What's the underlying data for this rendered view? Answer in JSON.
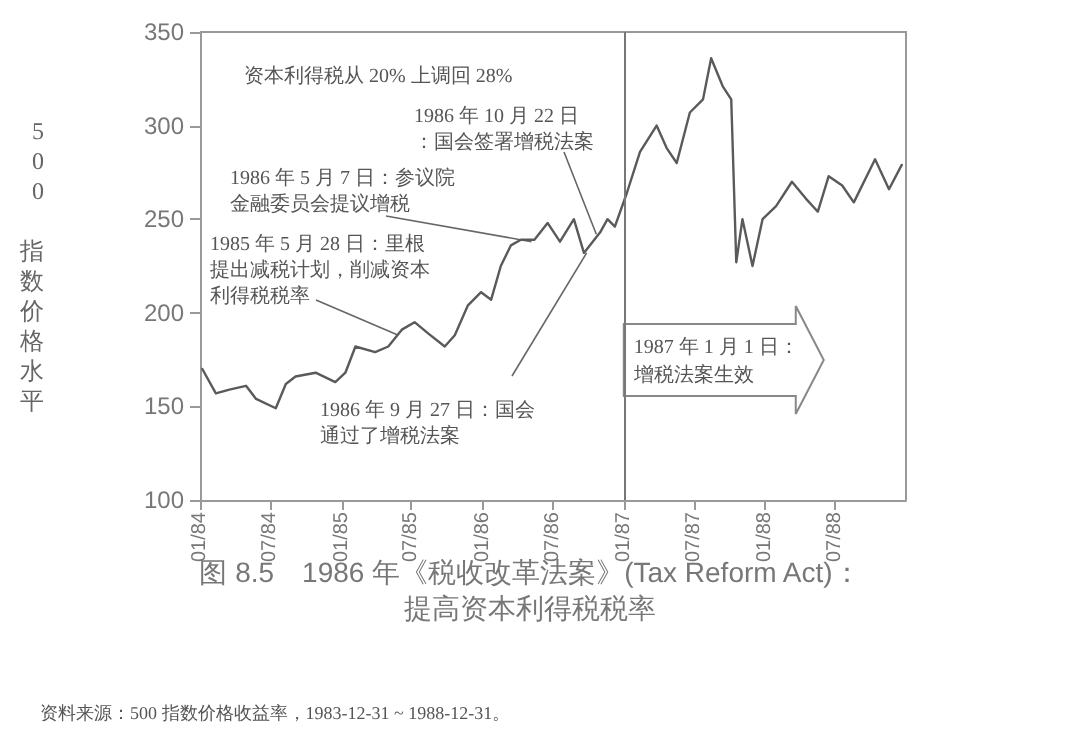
{
  "chart_data": {
    "type": "line",
    "title": "图 8.5　1986 年《税收改革法案》(Tax Reform Act)：提高资本利得税税率",
    "ylabel": "500 指数价格水平",
    "color": "#5a5a5a",
    "grid": false,
    "marker": "none",
    "line_style": "solid",
    "xlim": [
      "1984-01-01",
      "1988-12-31"
    ],
    "xticks": [
      {
        "value": "1984-01-01",
        "label": "01/84"
      },
      {
        "value": "1984-07-01",
        "label": "07/84"
      },
      {
        "value": "1985-01-01",
        "label": "01/85"
      },
      {
        "value": "1985-07-01",
        "label": "07/85"
      },
      {
        "value": "1986-01-01",
        "label": "01/86"
      },
      {
        "value": "1986-07-01",
        "label": "07/86"
      },
      {
        "value": "1987-01-01",
        "label": "01/87"
      },
      {
        "value": "1987-07-01",
        "label": "07/87"
      },
      {
        "value": "1988-01-01",
        "label": "01/88"
      },
      {
        "value": "1988-07-01",
        "label": "07/88"
      }
    ],
    "ylim": [
      100,
      350
    ],
    "yticks": [
      100,
      150,
      200,
      250,
      300,
      350
    ],
    "x": [
      "1984-01-07",
      "1984-02-11",
      "1984-03-17",
      "1984-04-29",
      "1984-05-25",
      "1984-07-15",
      "1984-08-10",
      "1984-09-04",
      "1984-10-26",
      "1984-12-16",
      "1985-01-11",
      "1985-02-06",
      "1985-03-29",
      "1985-05-02",
      "1985-06-06",
      "1985-07-09",
      "1985-08-13",
      "1985-09-25",
      "1985-10-21",
      "1985-11-24",
      "1985-12-28",
      "1986-01-23",
      "1986-02-17",
      "1986-03-15",
      "1986-04-10",
      "1986-05-15",
      "1986-06-18",
      "1986-07-20",
      "1986-08-25",
      "1986-09-20",
      "1986-11-01",
      "1986-11-20",
      "1986-12-09",
      "1987-01-09",
      "1987-02-12",
      "1987-03-27",
      "1987-04-22",
      "1987-05-18",
      "1987-06-21",
      "1987-07-25",
      "1987-08-15",
      "1987-09-14",
      "1987-10-06",
      "1987-10-19",
      "1987-11-04",
      "1987-11-30",
      "1987-12-26",
      "1988-01-30",
      "1988-03-11",
      "1988-04-16",
      "1988-05-17",
      "1988-06-14",
      "1988-07-19",
      "1988-08-18",
      "1988-10-12",
      "1988-11-17",
      "1988-12-20"
    ],
    "values": [
      170,
      157,
      159,
      161,
      154,
      149,
      162,
      166,
      168,
      163,
      168,
      182,
      179,
      182,
      191,
      195,
      189,
      182,
      188,
      204,
      211,
      207,
      225,
      236,
      239,
      239,
      248,
      238,
      250,
      232,
      243,
      250,
      246,
      264,
      286,
      300,
      288,
      280,
      307,
      314,
      336,
      321,
      314,
      227,
      250,
      225,
      250,
      257,
      270,
      261,
      254,
      273,
      268,
      259,
      282,
      266,
      279
    ],
    "ref_lines": [
      {
        "axis": "x",
        "value": "1987-01-01",
        "label": "1987 年 1 月 1 日：增税法案生效",
        "color": "#777777"
      }
    ],
    "annotations": [
      "资本利得税从 20% 上调回 28%",
      {
        "text": "1986 年 10 月 22 日：国会签署增税法案",
        "x": "1986-10-22",
        "y": 242
      },
      {
        "text": "1986 年 5 月 7 日：参议院金融委员会提议增税",
        "x": "1986-05-07",
        "y": 238
      },
      {
        "text": "1985 年 5 月 28 日：里根提出减税计划，削减资本利得税税率",
        "x": "1985-05-28",
        "y": 188
      },
      {
        "text": "1986 年 9 月 27 日：国会通过了增税法案",
        "x": "1986-09-27",
        "y": 232
      },
      "资料来源：500 指数价格收益率，1983-12-31 ~ 1988-12-31。"
    ]
  }
}
